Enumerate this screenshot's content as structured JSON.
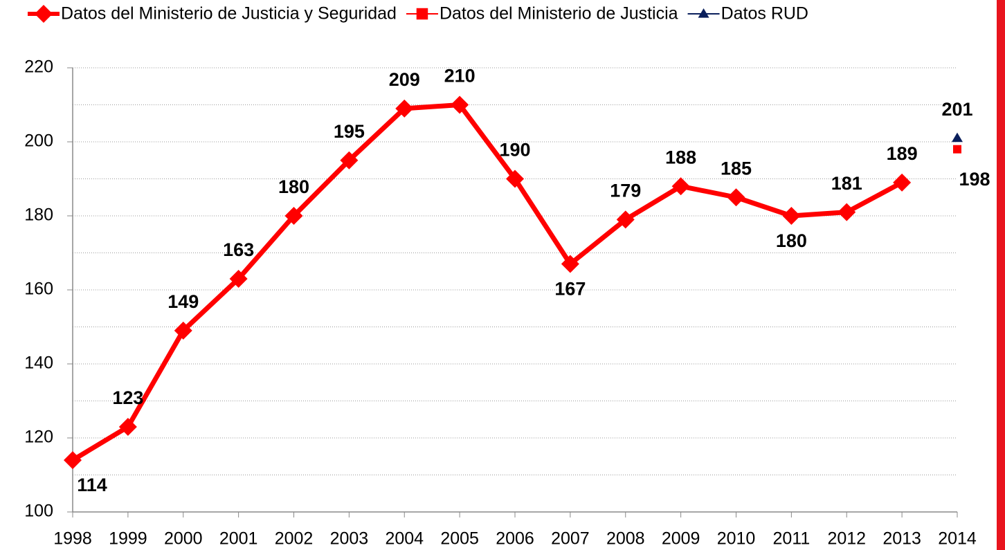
{
  "chart_data": {
    "type": "line",
    "categories": [
      "1998",
      "1999",
      "2000",
      "2001",
      "2002",
      "2003",
      "2004",
      "2005",
      "2006",
      "2007",
      "2008",
      "2009",
      "2010",
      "2011",
      "2012",
      "2013",
      "2014"
    ],
    "series": [
      {
        "name": "Datos del Ministerio de Justicia y Seguridad",
        "color": "#ff0000",
        "marker": "diamond",
        "values": [
          114,
          123,
          149,
          163,
          180,
          195,
          209,
          210,
          190,
          167,
          179,
          188,
          185,
          180,
          181,
          189,
          null
        ]
      },
      {
        "name": "Datos del Ministerio de Justicia",
        "color": "#ff0000",
        "marker": "square",
        "values": [
          null,
          null,
          null,
          null,
          null,
          null,
          null,
          null,
          null,
          null,
          null,
          null,
          null,
          null,
          null,
          null,
          198
        ]
      },
      {
        "name": "Datos RUD",
        "color": "#0a1f5c",
        "marker": "triangle",
        "values": [
          null,
          null,
          null,
          null,
          null,
          null,
          null,
          null,
          null,
          null,
          null,
          null,
          null,
          null,
          null,
          null,
          201
        ]
      }
    ],
    "ylim": [
      100,
      220
    ],
    "yticks": [
      100,
      120,
      140,
      160,
      180,
      200,
      220
    ],
    "minor_yticks": [
      110,
      130,
      150,
      170,
      190,
      210
    ],
    "grid": true,
    "legend": "top"
  }
}
